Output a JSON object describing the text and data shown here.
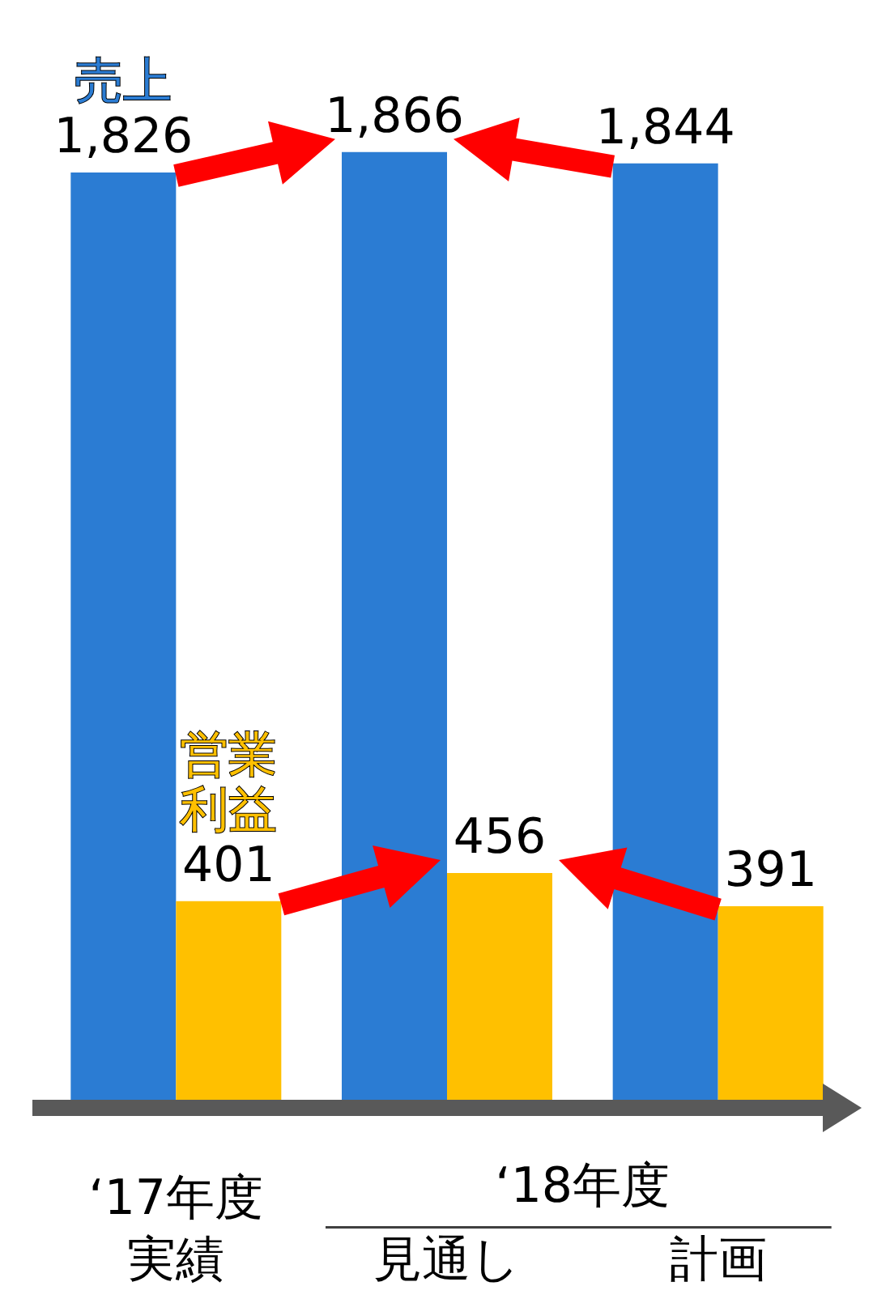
{
  "chart_data": {
    "type": "bar",
    "categories": [
      "‘17年度実績",
      "見通し",
      "計画"
    ],
    "series": [
      {
        "name": "売上",
        "color": "#2b7cd3",
        "values": [
          1826,
          1866,
          1844
        ],
        "value_labels": [
          "1,826",
          "1,866",
          "1,844"
        ]
      },
      {
        "name": "営業利益",
        "color": "#ffc000",
        "values": [
          401,
          456,
          391
        ],
        "value_labels": [
          "401",
          "456",
          "391"
        ]
      }
    ],
    "tick_labels": "x",
    "grid": false,
    "legend": false,
    "annotations": [
      "‘18年度"
    ]
  }
}
